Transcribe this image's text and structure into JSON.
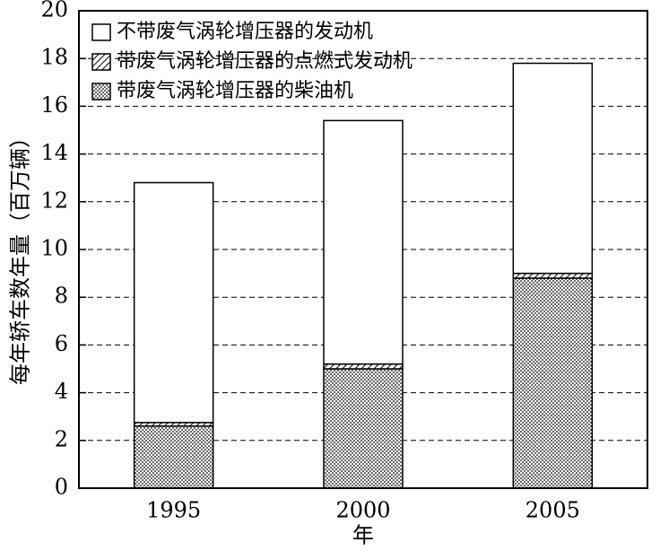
{
  "chart_data": {
    "type": "stacked_bar",
    "y_label": "每年轿车数年量（百万辆）",
    "x_label": "年",
    "categories": [
      "1995",
      "2000",
      "2005"
    ],
    "series": [
      {
        "name": "不带废气涡轮增压器的发动机",
        "pattern": "none",
        "color": "#ffffff",
        "values": [
          10.05,
          10.2,
          8.8
        ]
      },
      {
        "name": "带废气涡轮增压器的点燃式发动机",
        "pattern": "hatch",
        "color": "#000000",
        "values": [
          0.15,
          0.2,
          0.2
        ]
      },
      {
        "name": "带废气涡轮增压器的柴油机",
        "pattern": "dots",
        "color": "#000000",
        "values": [
          2.6,
          5.0,
          8.8
        ]
      }
    ],
    "stack_from": "last",
    "ylim": [
      0,
      20
    ],
    "yticks": [
      0,
      2,
      4,
      6,
      8,
      10,
      12,
      14,
      16,
      18,
      20
    ],
    "grid": true,
    "legend": "top-left"
  }
}
